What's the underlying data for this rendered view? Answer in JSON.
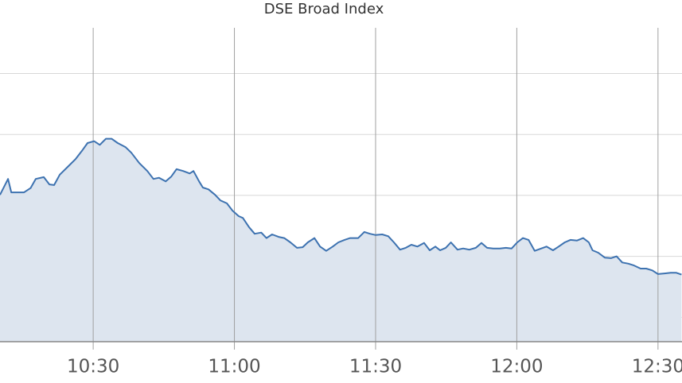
{
  "chart_data": {
    "type": "area",
    "title": "DSE Broad Index",
    "x": [
      610.2,
      611.9,
      612.6,
      615.3,
      616.7,
      617.8,
      619.5,
      620.7,
      621.7,
      622.9,
      624.6,
      626.3,
      627.6,
      628.8,
      630.2,
      631.4,
      632.7,
      633.9,
      635.2,
      636.9,
      638.1,
      639.8,
      641.5,
      642.8,
      644.0,
      645.4,
      646.6,
      647.7,
      649.1,
      650.5,
      651.3,
      652.5,
      653.3,
      654.5,
      655.9,
      657.0,
      658.4,
      659.6,
      660.9,
      661.8,
      663.1,
      664.3,
      665.7,
      666.8,
      668.0,
      669.4,
      670.6,
      671.9,
      673.3,
      674.5,
      675.6,
      677.0,
      678.2,
      679.5,
      680.9,
      682.1,
      683.4,
      684.6,
      686.3,
      687.6,
      688.8,
      690.0,
      691.4,
      692.7,
      693.9,
      695.2,
      696.4,
      697.6,
      698.9,
      700.3,
      701.5,
      702.7,
      703.7,
      704.9,
      706.0,
      707.4,
      708.6,
      709.9,
      711.3,
      712.5,
      713.7,
      715.0,
      716.4,
      717.7,
      718.9,
      720.1,
      721.3,
      722.5,
      723.8,
      725.2,
      726.3,
      727.7,
      728.9,
      730.2,
      731.4,
      732.8,
      734.1,
      735.3,
      736.1,
      737.3,
      738.7,
      740.0,
      741.2,
      742.4,
      743.7,
      744.9,
      746.3,
      747.5,
      748.8,
      750.0,
      751.4,
      752.7,
      753.9,
      755.0
    ],
    "values": [
      30.1,
      32.7,
      30.5,
      30.5,
      31.2,
      32.7,
      33.0,
      31.8,
      31.7,
      33.4,
      34.7,
      36.0,
      37.3,
      38.6,
      38.9,
      38.3,
      39.3,
      39.3,
      38.6,
      37.9,
      37.0,
      35.3,
      34.0,
      32.7,
      32.9,
      32.3,
      33.1,
      34.3,
      34.0,
      33.6,
      34.0,
      32.3,
      31.3,
      31.0,
      30.1,
      29.2,
      28.7,
      27.5,
      26.6,
      26.3,
      24.8,
      23.7,
      23.9,
      23.0,
      23.6,
      23.2,
      23.0,
      22.3,
      21.4,
      21.5,
      22.3,
      23.0,
      21.6,
      20.9,
      21.6,
      22.3,
      22.7,
      23.0,
      23.0,
      24.0,
      23.7,
      23.5,
      23.6,
      23.3,
      22.3,
      21.1,
      21.4,
      21.9,
      21.6,
      22.2,
      21.0,
      21.6,
      21.0,
      21.4,
      22.3,
      21.1,
      21.3,
      21.1,
      21.4,
      22.2,
      21.4,
      21.3,
      21.3,
      21.4,
      21.3,
      22.3,
      23.0,
      22.7,
      20.9,
      21.3,
      21.6,
      21.0,
      21.6,
      22.3,
      22.7,
      22.6,
      23.0,
      22.3,
      21.0,
      20.6,
      19.8,
      19.7,
      20.0,
      19.0,
      18.8,
      18.5,
      18.0,
      18.0,
      17.7,
      17.1,
      17.2,
      17.3,
      17.3,
      17.0
    ],
    "color": "#3d72b0",
    "fill_color": "#dde5ef",
    "xlim": [
      610.2,
      755.1
    ],
    "xticks": [
      {
        "value": 630,
        "label": "10:30"
      },
      {
        "value": 660,
        "label": "11:00"
      },
      {
        "value": 690,
        "label": "11:30"
      },
      {
        "value": 720,
        "label": "12:00"
      },
      {
        "value": 750,
        "label": "12:30"
      }
    ],
    "ylim": [
      6,
      57.5
    ],
    "yticks": [
      10,
      20,
      30,
      40,
      50
    ],
    "grid": true
  }
}
